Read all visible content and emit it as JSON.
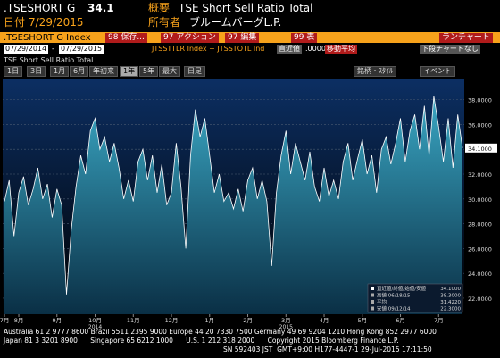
{
  "header": {
    "ticker": ".TSESHORT G",
    "price": "34.1",
    "date_label": "日付",
    "date": "7/29/2015",
    "summary_label": "概要",
    "summary": "TSE Short Sell Ratio Total",
    "owner_label": "所有者",
    "owner": "ブルームバーグL.P."
  },
  "toolbar": {
    "index": ".TSESHORT G Index",
    "buttons": [
      "98 保存...",
      "97 アクション",
      "97 編集",
      "99 表"
    ],
    "right": "ランチャート"
  },
  "range_bar": {
    "start": "07/29/2014",
    "separator": "-",
    "end": "07/29/2015",
    "fields": "JTSSTTLR Index + JTSSTOTL Ind",
    "mode": "直近値",
    "mode_value": ".0000",
    "moving_avg": "移動平均",
    "lower": "下段チャートなし"
  },
  "period_bar": {
    "periods": [
      "1日",
      "3日",
      "1月",
      "6月",
      "年初来",
      "1年",
      "5年",
      "最大"
    ],
    "frequency": "日足",
    "style": "銘柄・ｽﾀｲﾙ",
    "events": "イベント"
  },
  "chart_data": {
    "type": "area",
    "title": "TSE Short Sell Ratio Total",
    "color": "#2f9bb5",
    "line_color": "#ffffff",
    "categories": [
      "7月",
      null,
      null,
      "8月",
      null,
      null,
      null,
      null,
      null,
      null,
      null,
      "9月",
      null,
      null,
      null,
      null,
      null,
      null,
      null,
      "10月",
      null,
      null,
      null,
      null,
      null,
      null,
      null,
      "11月",
      null,
      null,
      null,
      null,
      null,
      null,
      null,
      "12月",
      null,
      null,
      null,
      null,
      null,
      null,
      null,
      "1月",
      null,
      null,
      null,
      null,
      null,
      null,
      null,
      "2月",
      null,
      null,
      null,
      null,
      null,
      null,
      null,
      "3月",
      null,
      null,
      null,
      null,
      null,
      null,
      null,
      "4月",
      null,
      null,
      null,
      null,
      null,
      null,
      null,
      "5月",
      null,
      null,
      null,
      null,
      null,
      null,
      null,
      "6月",
      null,
      null,
      null,
      null,
      null,
      null,
      null,
      "7月",
      null,
      null,
      null,
      null,
      null
    ],
    "year_labels": [
      "2014",
      "2015"
    ],
    "values": [
      29.8,
      31.5,
      27,
      30.5,
      31.8,
      29.5,
      30.8,
      32.5,
      30,
      31.2,
      28.5,
      30.8,
      29.5,
      22.3,
      27.5,
      31,
      33.5,
      32,
      35.5,
      36.5,
      34,
      35,
      33,
      34.5,
      32.5,
      30,
      31.5,
      29.8,
      33,
      34,
      31.5,
      33.5,
      30.5,
      32.8,
      29.5,
      30.5,
      34.5,
      31,
      26,
      33.5,
      37.2,
      35,
      36.5,
      33.5,
      30.5,
      32,
      29.8,
      30.5,
      29.2,
      30.8,
      29,
      31.5,
      32.5,
      30,
      31.5,
      29.8,
      24.6,
      30.5,
      33.5,
      35.5,
      32,
      34.5,
      33,
      31.5,
      33.8,
      31,
      29.8,
      32.5,
      30.2,
      31.5,
      30,
      33,
      34.5,
      31.5,
      33.2,
      34.8,
      32,
      33.5,
      30.5,
      34,
      35,
      32.8,
      34.5,
      36.5,
      33,
      35.5,
      36.8,
      34,
      37.5,
      33.5,
      38.3,
      35.8,
      33,
      36.5,
      32.5,
      36.8,
      34.1
    ],
    "last_label": {
      "value": 34.1,
      "label": "34.1000"
    },
    "ylim": [
      20.7,
      39.7
    ],
    "yticks": [
      {
        "value": 22,
        "label": "22.0000"
      },
      {
        "value": 24,
        "label": "24.0000"
      },
      {
        "value": 26,
        "label": "26.0000"
      },
      {
        "value": 28,
        "label": "28.0000"
      },
      {
        "value": 30,
        "label": "30.0000"
      },
      {
        "value": 32,
        "label": "32.0000"
      },
      {
        "value": 34,
        "label": "34.0000"
      },
      {
        "value": 36,
        "label": "36.0000"
      },
      {
        "value": 38,
        "label": "38.0000"
      }
    ],
    "grid": true,
    "legend_rows": [
      {
        "label": "直近値/終値/始値/安値",
        "value": "34.1000"
      },
      {
        "label": "高値 06/18/15",
        "value": "38.3000"
      },
      {
        "label": "平均",
        "value": "31.4220"
      },
      {
        "label": "安値 09/12/14",
        "value": "22.3000"
      }
    ]
  },
  "footer": {
    "line1": "Australia 61 2 9777 8600 Brazil 5511 2395 9000 Europe 44 20 7330 7500 Germany 49 69 9204 1210 Hong Kong 852 2977 6000",
    "line2": "Japan 81 3 3201 8900      Singapore 65 6212 1000      U.S. 1 212 318 2000      Copyright 2015 Bloomberg Finance L.P.",
    "line3": "SN 592403 JST  GMT+9:00 H177-4447-1 29-Jul-2015 17:11:50"
  }
}
